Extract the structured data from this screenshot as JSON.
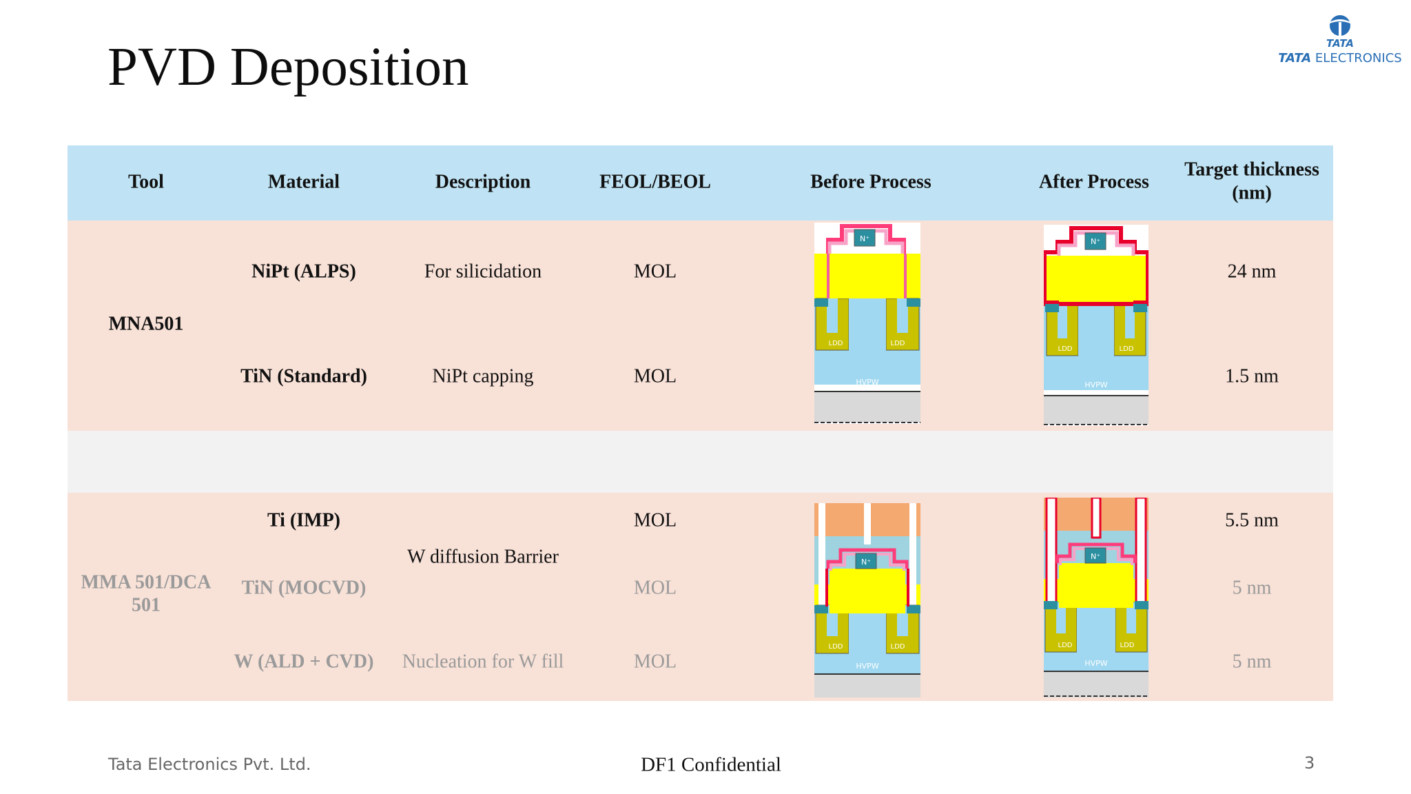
{
  "slide": {
    "title": "PVD Deposition",
    "logo": {
      "mark_text": "TATA",
      "brand": "TATA",
      "brand_suffix": "ELECTRONICS"
    },
    "table": {
      "headers": [
        "Tool",
        "Material",
        "Description",
        "FEOL/BEOL",
        "Before Process",
        "After Process",
        "Target thickness (nm)"
      ],
      "header_thickness_line1": "Target thickness",
      "header_thickness_line2": "(nm)",
      "group1": {
        "tool": "MNA501",
        "rows": [
          {
            "material": "NiPt (ALPS)",
            "description": "For silicidation",
            "layer": "MOL",
            "thickness": "24 nm"
          },
          {
            "material": "TiN (Standard)",
            "description": "NiPt capping",
            "layer": "MOL",
            "thickness": "1.5 nm"
          }
        ]
      },
      "group2": {
        "tool_line1": "MMA 501/DCA",
        "tool_line2": "501",
        "shared_description": "W diffusion Barrier",
        "rows": [
          {
            "material": "Ti (IMP)",
            "layer": "MOL",
            "thickness": "5.5 nm"
          },
          {
            "material": "TiN (MOCVD)",
            "layer": "MOL",
            "thickness": "5 nm"
          },
          {
            "material": "W (ALD + CVD)",
            "description": "Nucleation for W fill",
            "layer": "MOL",
            "thickness": "5 nm"
          }
        ]
      },
      "figure_labels": {
        "n_plus": "N⁺",
        "ldd": "LDD",
        "well": "HVPW"
      }
    },
    "colors": {
      "header_band": "#bfe3f4",
      "row_band": "#f8e1d7",
      "gap_band": "#f2f2f2",
      "brand_blue": "#2a6fb5"
    }
  },
  "footer": {
    "company": "Tata Electronics Pvt. Ltd.",
    "classification": "DF1 Confidential",
    "page_number": "3"
  }
}
